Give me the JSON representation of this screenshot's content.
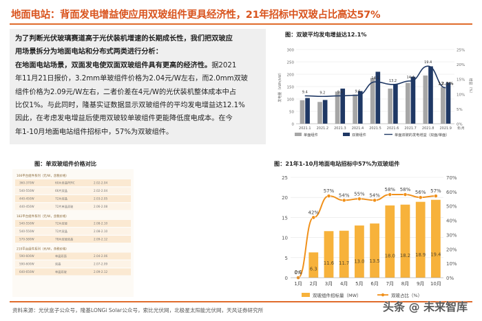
{
  "title": "地面电站：背面发电增益使应用双玻组件更具经济性，21年招标中双玻占比高达57%",
  "textbox": {
    "lines": [
      {
        "text": "为了判断光伏玻璃赛道高于光伏装机增速的长期成长性，我们把双玻应",
        "bold": true
      },
      {
        "text": "用场景拆分为地面电站和分布式两类进行分析：",
        "bold": true
      },
      {
        "text": "在地面电站场景，双面发电使双面双玻组件具有更高的经济性。据2021",
        "bold": false
      },
      {
        "text": "年11月21日报价，3.2mm单玻组件价格为2.04元/W左右，而2.0mm双玻",
        "bold": false
      },
      {
        "text": "组件价格为2.09元/W左右，二者价差在4元/W的光伏装机整体成本中占",
        "bold": false
      },
      {
        "text": "比仅1%。与此同时，隆基实证数据显示双玻组件的平均发电增益达12.1%",
        "bold": false
      },
      {
        "text": "因此，在考虑发电增益后使用双玻较单玻组件更能降低度电成本。在今",
        "bold": false
      },
      {
        "text": "年1-10月地面电站组件招标中，57%为双玻组件。",
        "bold": false
      }
    ],
    "bold_part_line3": "在地面电站场景，双面发电使双面双玻组件具有更高的经济性。",
    "rest_line3": "据2021"
  },
  "chart1": {
    "caption": "图：双玻平均发电增益达12.1%",
    "chart_data": {
      "type": "bar",
      "categories": [
        "2021.1",
        "2021.2",
        "2021.3",
        "2021.4",
        "2021.5",
        "2021.6",
        "2021.7",
        "2021.8",
        "2021.9"
      ],
      "series": [
        {
          "name": "单面组件",
          "color": "#a6a6a6",
          "values": [
            95,
            88,
            130,
            118,
            185,
            142,
            165,
            195,
            148
          ]
        },
        {
          "name": "双玻组件",
          "color": "#1f3864",
          "values": [
            104,
            96,
            142,
            132,
            210,
            161,
            190,
            232,
            166
          ]
        },
        {
          "name": "单面双玻的发电增益（双面/单面）",
          "color": "#1f3864",
          "values": [
            9.4,
            9.2,
            9.4,
            9.6,
            14.1,
            13.2,
            14.4,
            19.4,
            12.1
          ]
        }
      ],
      "data_labels": [
        "9.4",
        "9.2",
        "9.4",
        "9.6",
        "14.1",
        "13.2",
        "14.4",
        "19.4",
        "12.1%"
      ],
      "ylim_left": [
        0,
        300
      ],
      "ylim_right": [
        0,
        20
      ],
      "ylabel_left": "发电量（kWh/kW）",
      "ylabel_right": "增益（%）",
      "left_ticks": [
        "300",
        "250",
        "200",
        "150",
        "100",
        "50",
        "0"
      ],
      "right_ticks": [
        "25%",
        "20%",
        "15%",
        "10%",
        "5%",
        "0%"
      ],
      "legend": [
        "单面组件",
        "双玻组件",
        "单面双玻的发电增益（双面/单面）"
      ],
      "x_suffix": "年/月"
    }
  },
  "table": {
    "caption": "图：单双玻组件价格对比",
    "groups": [
      {
        "header": "166平台组件系列（元/W，含税价格）",
        "rows": [
          [
            "360-370W",
            "60片单晶PERC",
            "2.02-2.04"
          ],
          [
            "540-550W",
            "66片双晶",
            "2.02-2.04"
          ],
          [
            "440-450W",
            "72片双晶",
            "2.03-2.05"
          ],
          [
            "440-450W",
            "72片单晶双玻",
            "2.06-2.08"
          ]
        ]
      },
      {
        "header": "182平台组件系列（元/W，含税价格）",
        "rows": [
          [
            "540-550W",
            "72片双玻",
            "2.08-2.10"
          ],
          [
            "540-550W",
            "72片双晶",
            "2.08-2.10"
          ],
          [
            "570-580W",
            "78片双玻双晶",
            "2.09-2.12"
          ]
        ]
      },
      {
        "header": "210平台组件系列（元/W，含税价格）",
        "rows": [
          [
            "590-600W",
            "单晶双面",
            "2.04-2.06"
          ],
          [
            "590-600W",
            "双晶",
            "2.07-2.09"
          ],
          [
            "640-650W",
            "单晶双玻",
            "2.09-2.12"
          ]
        ]
      }
    ]
  },
  "chart2": {
    "caption": "图：21年1-10月地面电站招标中57%为双玻组件",
    "chart_data": {
      "type": "bar",
      "categories": [
        "1月",
        "2月",
        "3月",
        "4月",
        "5月",
        "6月",
        "7月",
        "8月",
        "9月",
        "10月"
      ],
      "series": [
        {
          "name": "双玻组件招标量（MW）",
          "color": "#f5a623",
          "values": [
            0.0,
            6.3,
            11.6,
            11.7,
            13.0,
            13.5,
            18.0,
            18.2,
            18.9,
            19.4
          ]
        },
        {
          "name": "双玻占比（%）",
          "color": "#f5a623",
          "values": [
            0,
            42,
            57,
            54,
            55,
            54,
            58,
            58,
            56,
            57
          ]
        }
      ],
      "bar_labels": [
        "0.0",
        "6.3",
        "11.6",
        "11.7",
        "13.0",
        "13.5",
        "18.0",
        "18.2",
        "18.9",
        "19.4"
      ],
      "line_labels": [
        "0%",
        "42%",
        "57%",
        "54%",
        "55%",
        "54%",
        "58%",
        "58%",
        "56%",
        "57%"
      ],
      "ylim_left": [
        0,
        25
      ],
      "ylim_right": [
        0,
        70
      ],
      "left_ticks": [
        "25",
        "20",
        "15",
        "10",
        "5",
        "0"
      ],
      "right_ticks": [
        "70%",
        "60%",
        "50%",
        "40%",
        "30%",
        "20%",
        "10%",
        "0%"
      ],
      "legend": [
        "双玻组件招标量（MW）",
        "双玻占比（%）"
      ]
    }
  },
  "footer": "资料来源：光伏盒子公众号，隆基LONGi Solar公众号，索比光伏网，北极星太阳能光伏网，天风证券研究所",
  "watermark": {
    "text": "头条 @ 未来智库",
    "text2": "未来智库"
  },
  "colors": {
    "accent": "#d9541e",
    "rule": "#e06a2a",
    "navy": "#1f3864",
    "orange": "#f5a623"
  }
}
